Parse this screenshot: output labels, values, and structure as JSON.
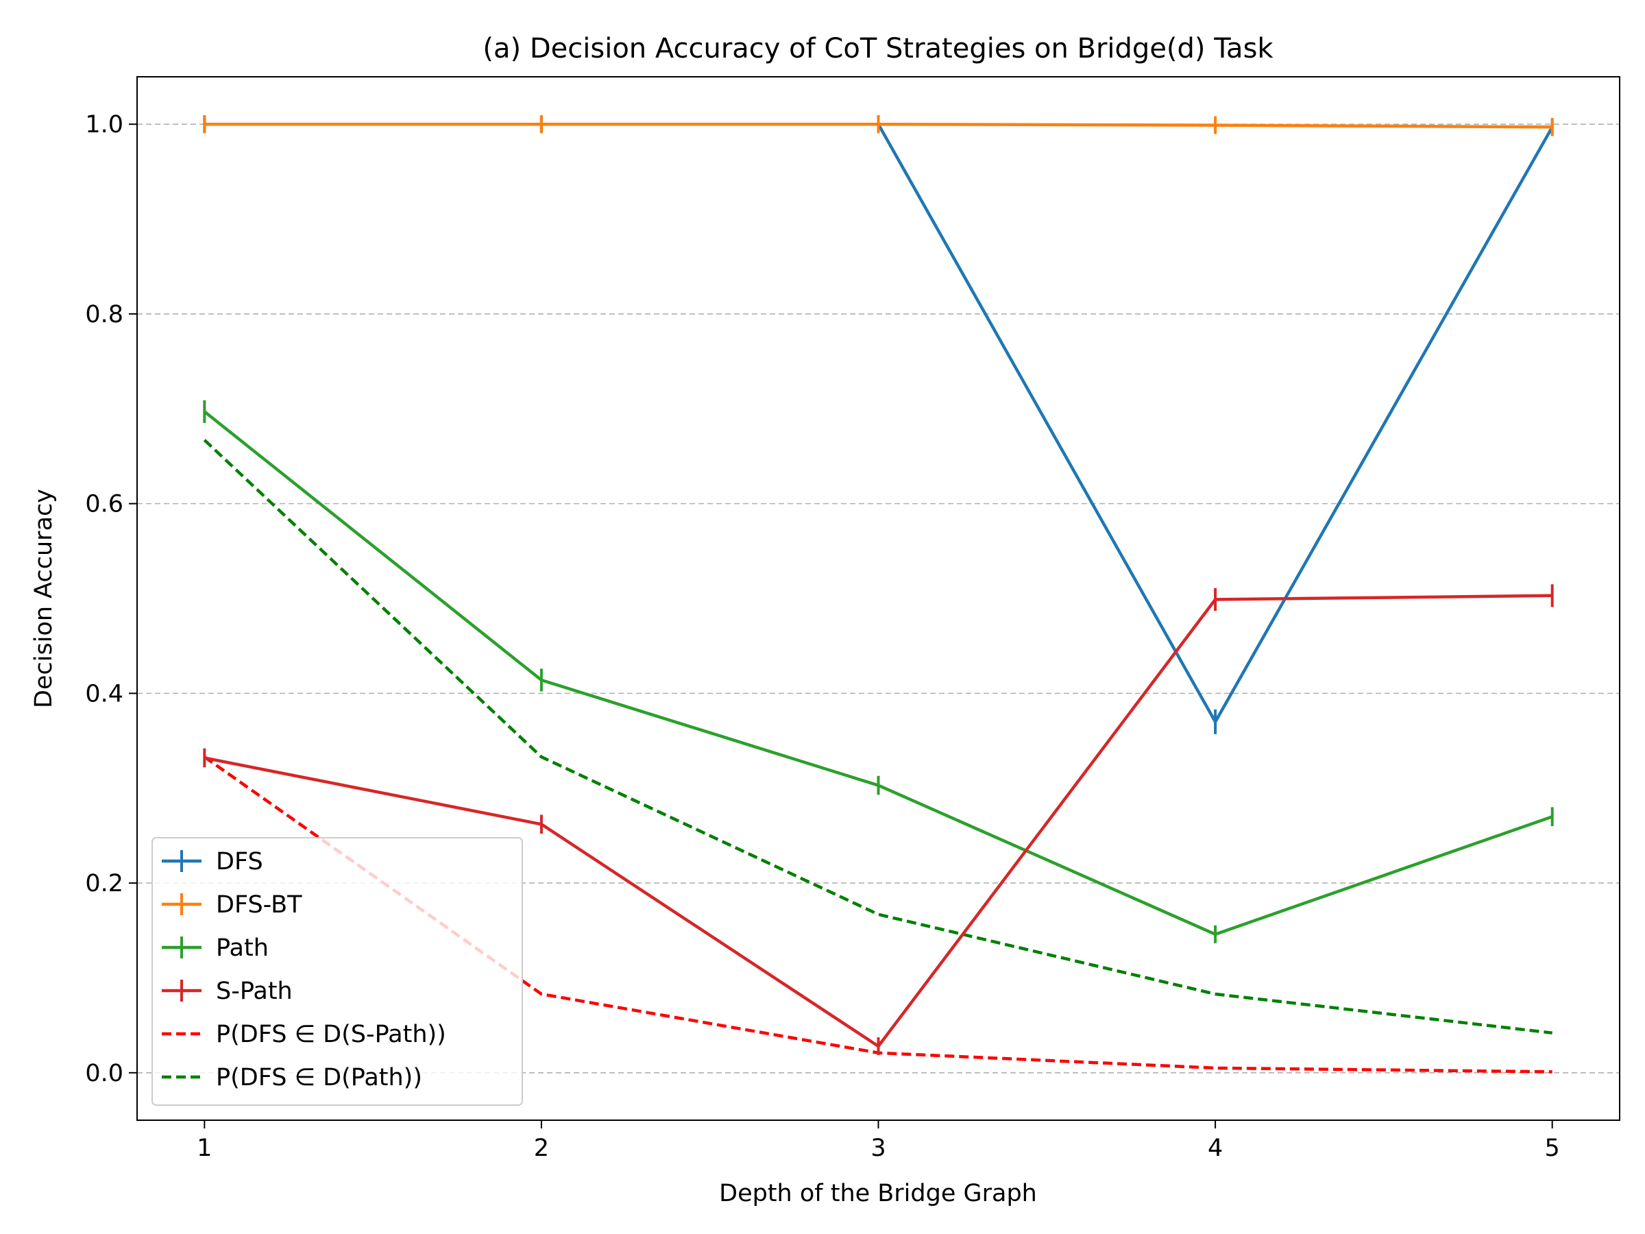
{
  "chart_data": {
    "type": "line",
    "title": "(a) Decision Accuracy of CoT Strategies on Bridge(d) Task",
    "xlabel": "Depth of the Bridge Graph",
    "ylabel": "Decision Accuracy",
    "x": [
      1,
      2,
      3,
      4,
      5
    ],
    "xlim": [
      0.8,
      5.2
    ],
    "ylim": [
      -0.05,
      1.05
    ],
    "xticks": [
      "1",
      "2",
      "3",
      "4",
      "5"
    ],
    "yticks": [
      "0.0",
      "0.2",
      "0.4",
      "0.6",
      "0.8",
      "1.0"
    ],
    "grid": "horizontal dashed",
    "legend_position": "lower-left",
    "series": [
      {
        "name": "DFS",
        "color": "#1f77b4",
        "style": "solid",
        "errorbars": true,
        "values": [
          1.0,
          1.0,
          1.0,
          0.37,
          0.997
        ],
        "err": [
          0.005,
          0.005,
          0.005,
          0.013,
          0.005
        ]
      },
      {
        "name": "DFS-BT",
        "color": "#ff7f0e",
        "style": "solid",
        "errorbars": true,
        "values": [
          1.0,
          1.0,
          1.0,
          0.999,
          0.997
        ],
        "err": [
          0.003,
          0.003,
          0.003,
          0.003,
          0.003
        ]
      },
      {
        "name": "Path",
        "color": "#2ca02c",
        "style": "solid",
        "errorbars": true,
        "values": [
          0.697,
          0.414,
          0.303,
          0.146,
          0.27
        ],
        "err": [
          0.012,
          0.012,
          0.01,
          0.008,
          0.01
        ]
      },
      {
        "name": "S-Path",
        "color": "#d62728",
        "style": "solid",
        "errorbars": true,
        "values": [
          0.332,
          0.262,
          0.028,
          0.499,
          0.503
        ],
        "err": [
          0.01,
          0.01,
          0.005,
          0.012,
          0.012
        ]
      },
      {
        "name": "P(DFS ∈ D(S-Path))",
        "color": "#ff0000",
        "style": "dashed",
        "errorbars": false,
        "values": [
          0.333,
          0.083,
          0.021,
          0.005,
          0.001
        ]
      },
      {
        "name": "P(DFS ∈ D(Path))",
        "color": "#008000",
        "style": "dashed",
        "errorbars": false,
        "values": [
          0.667,
          0.333,
          0.167,
          0.083,
          0.042
        ]
      }
    ]
  }
}
